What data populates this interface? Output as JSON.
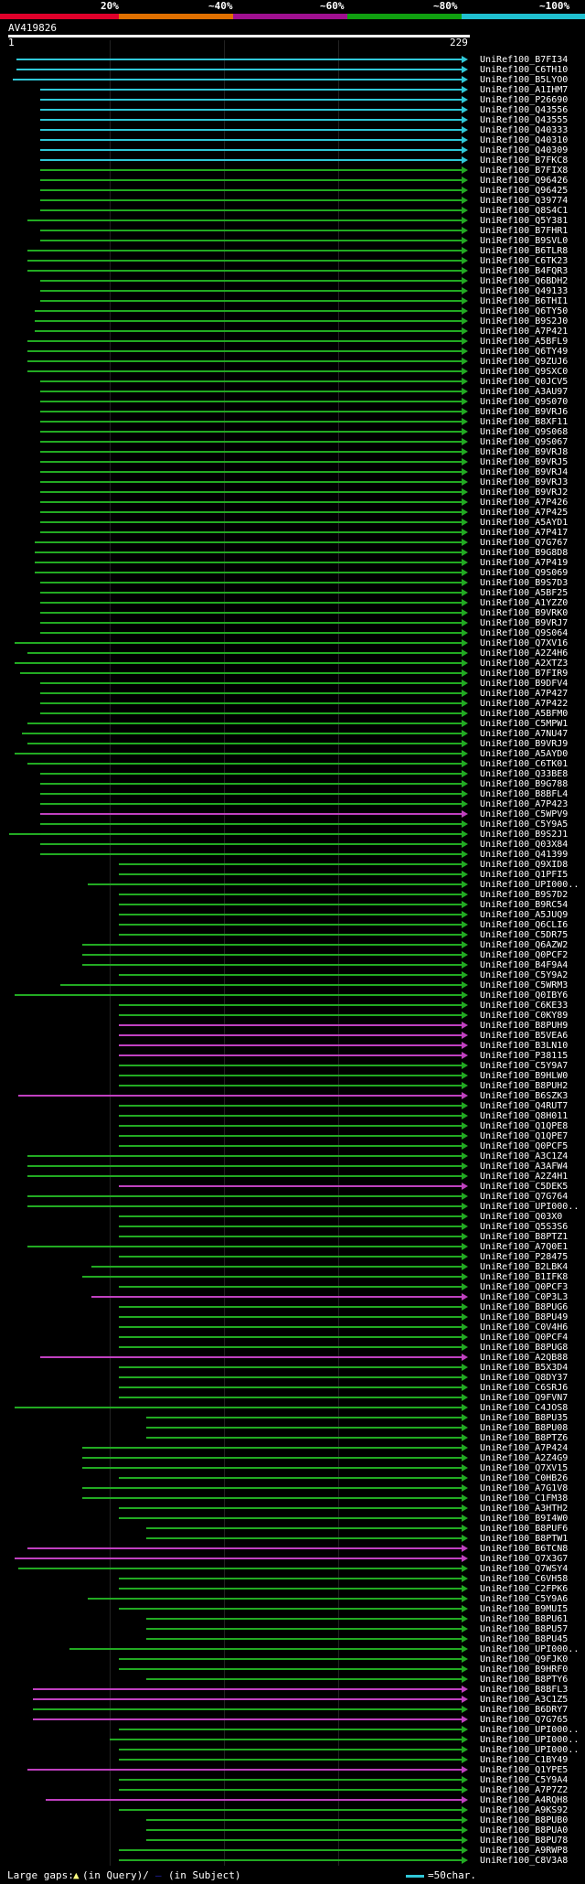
{
  "header": {
    "query_id": "AV419826",
    "query_start": "1",
    "query_end": "229",
    "scale_labels": [
      "20%",
      "~40%",
      "~60%",
      "~80%",
      "~100%"
    ],
    "scale_colors": [
      "#e0002a",
      "#e07000",
      "#a01090",
      "#10a010",
      "#20c0d0"
    ]
  },
  "colors": {
    "cyan": "#30c8d8",
    "green": "#22aa22",
    "magenta": "#c040c0",
    "gap_query": "#ffff80",
    "gap_subject": "#2222aa"
  },
  "hits": [
    {
      "name": "UniRef100_B7FI34",
      "c": "cyan",
      "s": 18
    },
    {
      "name": "UniRef100_C6TH10",
      "c": "cyan",
      "s": 18
    },
    {
      "name": "UniRef100_B5LYO0",
      "c": "cyan",
      "s": 14
    },
    {
      "name": "UniRef100_A1IHM7",
      "c": "cyan",
      "s": 44
    },
    {
      "name": "UniRef100_P26690",
      "c": "cyan",
      "s": 44
    },
    {
      "name": "UniRef100_Q43556",
      "c": "cyan",
      "s": 44
    },
    {
      "name": "UniRef100_Q43555",
      "c": "cyan",
      "s": 44
    },
    {
      "name": "UniRef100_Q40333",
      "c": "cyan",
      "s": 44
    },
    {
      "name": "UniRef100_Q40310",
      "c": "cyan",
      "s": 44
    },
    {
      "name": "UniRef100_Q40309",
      "c": "cyan",
      "s": 44
    },
    {
      "name": "UniRef100_B7FKC8",
      "c": "cyan",
      "s": 44
    },
    {
      "name": "UniRef100_B7FIX8",
      "c": "green",
      "s": 44
    },
    {
      "name": "UniRef100_Q96426",
      "c": "green",
      "s": 44
    },
    {
      "name": "UniRef100_Q96425",
      "c": "green",
      "s": 44
    },
    {
      "name": "UniRef100_Q39774",
      "c": "green",
      "s": 44
    },
    {
      "name": "UniRef100_Q8S4C1",
      "c": "green",
      "s": 44
    },
    {
      "name": "UniRef100_Q5Y381",
      "c": "green",
      "s": 30
    },
    {
      "name": "UniRef100_B7FHR1",
      "c": "green",
      "s": 44
    },
    {
      "name": "UniRef100_B9SVL0",
      "c": "green",
      "s": 44
    },
    {
      "name": "UniRef100_B6TLR8",
      "c": "green",
      "s": 30
    },
    {
      "name": "UniRef100_C6TK23",
      "c": "green",
      "s": 30
    },
    {
      "name": "UniRef100_B4FQR3",
      "c": "green",
      "s": 30
    },
    {
      "name": "UniRef100_Q6BDH2",
      "c": "green",
      "s": 44
    },
    {
      "name": "UniRef100_Q49133",
      "c": "green",
      "s": 44
    },
    {
      "name": "UniRef100_B6THI1",
      "c": "green",
      "s": 44
    },
    {
      "name": "UniRef100_Q6TY50",
      "c": "green",
      "s": 38
    },
    {
      "name": "UniRef100_B9S2J0",
      "c": "green",
      "s": 38
    },
    {
      "name": "UniRef100_A7P421",
      "c": "green",
      "s": 38
    },
    {
      "name": "UniRef100_A5BFL9",
      "c": "green",
      "s": 30
    },
    {
      "name": "UniRef100_Q6TY49",
      "c": "green",
      "s": 30
    },
    {
      "name": "UniRef100_Q9ZUJ6",
      "c": "green",
      "s": 30
    },
    {
      "name": "UniRef100_Q9SXC0",
      "c": "green",
      "s": 30
    },
    {
      "name": "UniRef100_Q0JCV5",
      "c": "green",
      "s": 44
    },
    {
      "name": "UniRef100_A3AU97",
      "c": "green",
      "s": 44
    },
    {
      "name": "UniRef100_Q9S070",
      "c": "green",
      "s": 44
    },
    {
      "name": "UniRef100_B9VRJ6",
      "c": "green",
      "s": 44
    },
    {
      "name": "UniRef100_B8XF11",
      "c": "green",
      "s": 44
    },
    {
      "name": "UniRef100_Q9S068",
      "c": "green",
      "s": 44
    },
    {
      "name": "UniRef100_Q9S067",
      "c": "green",
      "s": 44
    },
    {
      "name": "UniRef100_B9VRJ8",
      "c": "green",
      "s": 44
    },
    {
      "name": "UniRef100_B9VRJ5",
      "c": "green",
      "s": 44
    },
    {
      "name": "UniRef100_B9VRJ4",
      "c": "green",
      "s": 44
    },
    {
      "name": "UniRef100_B9VRJ3",
      "c": "green",
      "s": 44
    },
    {
      "name": "UniRef100_B9VRJ2",
      "c": "green",
      "s": 44
    },
    {
      "name": "UniRef100_A7P426",
      "c": "green",
      "s": 44
    },
    {
      "name": "UniRef100_A7P425",
      "c": "green",
      "s": 44
    },
    {
      "name": "UniRef100_A5AYD1",
      "c": "green",
      "s": 44
    },
    {
      "name": "UniRef100_A7P417",
      "c": "green",
      "s": 44
    },
    {
      "name": "UniRef100_Q7G767",
      "c": "green",
      "s": 38
    },
    {
      "name": "UniRef100_B9G8D8",
      "c": "green",
      "s": 38
    },
    {
      "name": "UniRef100_A7P419",
      "c": "green",
      "s": 38
    },
    {
      "name": "UniRef100_Q9S069",
      "c": "green",
      "s": 38
    },
    {
      "name": "UniRef100_B9S7D3",
      "c": "green",
      "s": 44
    },
    {
      "name": "UniRef100_A5BF25",
      "c": "green",
      "s": 44
    },
    {
      "name": "UniRef100_A1YZZ0",
      "c": "green",
      "s": 44
    },
    {
      "name": "UniRef100_B9VRK0",
      "c": "green",
      "s": 44
    },
    {
      "name": "UniRef100_B9VRJ7",
      "c": "green",
      "s": 44
    },
    {
      "name": "UniRef100_Q9S064",
      "c": "green",
      "s": 44
    },
    {
      "name": "UniRef100_Q7XV16",
      "c": "green",
      "s": 16
    },
    {
      "name": "UniRef100_A2Z4H6",
      "c": "green",
      "s": 30
    },
    {
      "name": "UniRef100_A2XTZ3",
      "c": "green",
      "s": 16
    },
    {
      "name": "UniRef100_B7FIR9",
      "c": "green",
      "s": 22
    },
    {
      "name": "UniRef100_B9DFV4",
      "c": "green",
      "s": 44
    },
    {
      "name": "UniRef100_A7P427",
      "c": "green",
      "s": 44
    },
    {
      "name": "UniRef100_A7P422",
      "c": "green",
      "s": 44
    },
    {
      "name": "UniRef100_A5BFM0",
      "c": "green",
      "s": 44
    },
    {
      "name": "UniRef100_C5MPW1",
      "c": "green",
      "s": 30
    },
    {
      "name": "UniRef100_A7NU47",
      "c": "green",
      "s": 24
    },
    {
      "name": "UniRef100_B9VRJ9",
      "c": "green",
      "s": 30
    },
    {
      "name": "UniRef100_A5AYD0",
      "c": "green",
      "s": 16
    },
    {
      "name": "UniRef100_C6TK01",
      "c": "green",
      "s": 30
    },
    {
      "name": "UniRef100_Q33BE8",
      "c": "green",
      "s": 44
    },
    {
      "name": "UniRef100_B9G788",
      "c": "green",
      "s": 44
    },
    {
      "name": "UniRef100_B8BFL4",
      "c": "green",
      "s": 44
    },
    {
      "name": "UniRef100_A7P423",
      "c": "green",
      "s": 44
    },
    {
      "name": "UniRef100_C5WPV9",
      "c": "magenta",
      "s": 44
    },
    {
      "name": "UniRef100_C5Y9A5",
      "c": "green",
      "s": 44
    },
    {
      "name": "UniRef100_B9S2J1",
      "c": "green",
      "s": 10
    },
    {
      "name": "UniRef100_Q03X84",
      "c": "green",
      "s": 44
    },
    {
      "name": "UniRef100_Q41399",
      "c": "green",
      "s": 44
    },
    {
      "name": "UniRef100_Q9XID8",
      "c": "green",
      "s": 130
    },
    {
      "name": "UniRef100_Q1PFI5",
      "c": "green",
      "s": 130
    },
    {
      "name": "UniRef100_UPI000..",
      "c": "green",
      "s": 96
    },
    {
      "name": "UniRef100_B9S7D2",
      "c": "green",
      "s": 130
    },
    {
      "name": "UniRef100_B9RC54",
      "c": "green",
      "s": 130
    },
    {
      "name": "UniRef100_A5JUQ9",
      "c": "green",
      "s": 130
    },
    {
      "name": "UniRef100_Q6CLI6",
      "c": "green",
      "s": 130
    },
    {
      "name": "UniRef100_C5DR75",
      "c": "green",
      "s": 130
    },
    {
      "name": "UniRef100_Q6AZW2",
      "c": "green",
      "s": 90
    },
    {
      "name": "UniRef100_Q0PCF2",
      "c": "green",
      "s": 90
    },
    {
      "name": "UniRef100_B4F9A4",
      "c": "green",
      "s": 90
    },
    {
      "name": "UniRef100_C5Y9A2",
      "c": "green",
      "s": 130
    },
    {
      "name": "UniRef100_C5WRM3",
      "c": "green",
      "s": 66
    },
    {
      "name": "UniRef100_Q0IBY6",
      "c": "green",
      "s": 16
    },
    {
      "name": "UniRef100_C6KE33",
      "c": "green",
      "s": 130
    },
    {
      "name": "UniRef100_C0KY89",
      "c": "green",
      "s": 130
    },
    {
      "name": "UniRef100_B8PUH9",
      "c": "magenta",
      "s": 130
    },
    {
      "name": "UniRef100_B5VEA6",
      "c": "magenta",
      "s": 130
    },
    {
      "name": "UniRef100_B3LN10",
      "c": "magenta",
      "s": 130
    },
    {
      "name": "UniRef100_P38115",
      "c": "magenta",
      "s": 130
    },
    {
      "name": "UniRef100_C5Y9A7",
      "c": "green",
      "s": 130
    },
    {
      "name": "UniRef100_B9HLW0",
      "c": "green",
      "s": 130
    },
    {
      "name": "UniRef100_B8PUH2",
      "c": "green",
      "s": 130
    },
    {
      "name": "UniRef100_B6SZK3",
      "c": "magenta",
      "s": 20
    },
    {
      "name": "UniRef100_Q4RUT7",
      "c": "green",
      "s": 130
    },
    {
      "name": "UniRef100_Q8H011",
      "c": "green",
      "s": 130
    },
    {
      "name": "UniRef100_Q1QPE8",
      "c": "green",
      "s": 130
    },
    {
      "name": "UniRef100_Q1QPE7",
      "c": "green",
      "s": 130
    },
    {
      "name": "UniRef100_Q0PCF5",
      "c": "green",
      "s": 130
    },
    {
      "name": "UniRef100_A3C1Z4",
      "c": "green",
      "s": 30
    },
    {
      "name": "UniRef100_A3AFW4",
      "c": "green",
      "s": 30
    },
    {
      "name": "UniRef100_A2Z4H1",
      "c": "green",
      "s": 30
    },
    {
      "name": "UniRef100_C5DEK5",
      "c": "magenta",
      "s": 130
    },
    {
      "name": "UniRef100_Q7G764",
      "c": "green",
      "s": 30
    },
    {
      "name": "UniRef100_UPI000..",
      "c": "green",
      "s": 30
    },
    {
      "name": "UniRef100_Q03X0",
      "c": "green",
      "s": 130
    },
    {
      "name": "UniRef100_Q5S3S6",
      "c": "green",
      "s": 130
    },
    {
      "name": "UniRef100_B8PTZ1",
      "c": "green",
      "s": 130
    },
    {
      "name": "UniRef100_A7Q0E1",
      "c": "green",
      "s": 30
    },
    {
      "name": "UniRef100_P28475",
      "c": "green",
      "s": 130
    },
    {
      "name": "UniRef100_B2LBK4",
      "c": "green",
      "s": 100
    },
    {
      "name": "UniRef100_B1IFK8",
      "c": "green",
      "s": 90
    },
    {
      "name": "UniRef100_Q0PCF3",
      "c": "green",
      "s": 130
    },
    {
      "name": "UniRef100_C0P3L3",
      "c": "magenta",
      "s": 100
    },
    {
      "name": "UniRef100_B8PUG6",
      "c": "green",
      "s": 130
    },
    {
      "name": "UniRef100_B8PU49",
      "c": "green",
      "s": 130
    },
    {
      "name": "UniRef100_C0V4H6",
      "c": "green",
      "s": 130
    },
    {
      "name": "UniRef100_Q0PCF4",
      "c": "green",
      "s": 130
    },
    {
      "name": "UniRef100_B8PUG8",
      "c": "green",
      "s": 130
    },
    {
      "name": "UniRef100_A2QB88",
      "c": "magenta",
      "s": 44
    },
    {
      "name": "UniRef100_B5X3D4",
      "c": "green",
      "s": 130
    },
    {
      "name": "UniRef100_Q8DY37",
      "c": "green",
      "s": 130
    },
    {
      "name": "UniRef100_C6SRJ6",
      "c": "green",
      "s": 130
    },
    {
      "name": "UniRef100_Q9FVN7",
      "c": "green",
      "s": 130
    },
    {
      "name": "UniRef100_C4JOS8",
      "c": "green",
      "s": 16
    },
    {
      "name": "UniRef100_B8PU35",
      "c": "green",
      "s": 160
    },
    {
      "name": "UniRef100_B8PU08",
      "c": "green",
      "s": 160
    },
    {
      "name": "UniRef100_B8PTZ6",
      "c": "green",
      "s": 160
    },
    {
      "name": "UniRef100_A7P424",
      "c": "green",
      "s": 90
    },
    {
      "name": "UniRef100_A2Z4G9",
      "c": "green",
      "s": 90
    },
    {
      "name": "UniRef100_Q7XV15",
      "c": "green",
      "s": 90
    },
    {
      "name": "UniRef100_C0HB26",
      "c": "green",
      "s": 130
    },
    {
      "name": "UniRef100_A7G1V8",
      "c": "green",
      "s": 90
    },
    {
      "name": "UniRef100_C1FM38",
      "c": "green",
      "s": 90
    },
    {
      "name": "UniRef100_A3HTH2",
      "c": "green",
      "s": 130
    },
    {
      "name": "UniRef100_B9I4W0",
      "c": "green",
      "s": 130
    },
    {
      "name": "UniRef100_B8PUF6",
      "c": "green",
      "s": 160
    },
    {
      "name": "UniRef100_B8PTW1",
      "c": "green",
      "s": 160
    },
    {
      "name": "UniRef100_B6TCN8",
      "c": "magenta",
      "s": 30
    },
    {
      "name": "UniRef100_Q7X3G7",
      "c": "magenta",
      "s": 16
    },
    {
      "name": "UniRef100_Q7WSY4",
      "c": "green",
      "s": 20
    },
    {
      "name": "UniRef100_C6VH58",
      "c": "green",
      "s": 130
    },
    {
      "name": "UniRef100_C2FPK6",
      "c": "green",
      "s": 130
    },
    {
      "name": "UniRef100_C5Y9A6",
      "c": "green",
      "s": 96
    },
    {
      "name": "UniRef100_B9MUI5",
      "c": "green",
      "s": 130
    },
    {
      "name": "UniRef100_B8PU61",
      "c": "green",
      "s": 160
    },
    {
      "name": "UniRef100_B8PU57",
      "c": "green",
      "s": 160
    },
    {
      "name": "UniRef100_B8PU45",
      "c": "green",
      "s": 160
    },
    {
      "name": "UniRef100_UPI000..",
      "c": "green",
      "s": 76
    },
    {
      "name": "UniRef100_Q9FJK0",
      "c": "green",
      "s": 130
    },
    {
      "name": "UniRef100_B9HRF0",
      "c": "green",
      "s": 130
    },
    {
      "name": "UniRef100_B8PTY6",
      "c": "green",
      "s": 160
    },
    {
      "name": "UniRef100_B8BFL3",
      "c": "magenta",
      "s": 36
    },
    {
      "name": "UniRef100_A3C1Z5",
      "c": "magenta",
      "s": 36
    },
    {
      "name": "UniRef100_B6DRY7",
      "c": "green",
      "s": 36
    },
    {
      "name": "UniRef100_Q7G765",
      "c": "magenta",
      "s": 36
    },
    {
      "name": "UniRef100_UPI000..",
      "c": "green",
      "s": 130
    },
    {
      "name": "UniRef100_UPI000..",
      "c": "green",
      "s": 120
    },
    {
      "name": "UniRef100_UPI000..",
      "c": "green",
      "s": 130
    },
    {
      "name": "UniRef100_C1BY49",
      "c": "green",
      "s": 130
    },
    {
      "name": "UniRef100_Q1YPE5",
      "c": "magenta",
      "s": 30
    },
    {
      "name": "UniRef100_C5Y9A4",
      "c": "green",
      "s": 130
    },
    {
      "name": "UniRef100_A7P7Z2",
      "c": "green",
      "s": 130
    },
    {
      "name": "UniRef100_A4RQH8",
      "c": "magenta",
      "s": 50
    },
    {
      "name": "UniRef100_A9KS92",
      "c": "green",
      "s": 130
    },
    {
      "name": "UniRef100_B8PUB0",
      "c": "green",
      "s": 160
    },
    {
      "name": "UniRef100_B8PUA0",
      "c": "green",
      "s": 160
    },
    {
      "name": "UniRef100_B8PU78",
      "c": "green",
      "s": 160
    },
    {
      "name": "UniRef100_A9RWP8",
      "c": "green",
      "s": 130
    },
    {
      "name": "UniRef100_C8V3A8",
      "c": "green",
      "s": 130
    }
  ],
  "footer": {
    "large_gaps_label": "Large gaps:",
    "in_query": "(in Query)/",
    "in_subject": "(in Subject)",
    "legend_label": "=50char."
  }
}
